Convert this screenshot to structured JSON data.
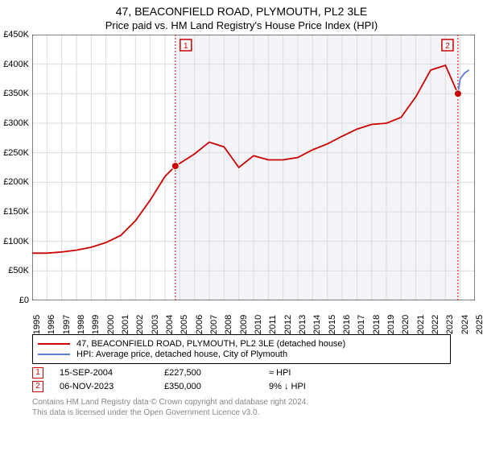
{
  "title": "47, BEACONFIELD ROAD, PLYMOUTH, PL2 3LE",
  "subtitle": "Price paid vs. HM Land Registry's House Price Index (HPI)",
  "chart": {
    "type": "line",
    "background_color": "#ffffff",
    "shaded_color": "#f2f4f8",
    "border_color": "#000000",
    "grid_color": "#dcdcdc",
    "ylim": [
      0,
      450000
    ],
    "ytick_step": 50000,
    "y_ticks": [
      "£0",
      "£50K",
      "£100K",
      "£150K",
      "£200K",
      "£250K",
      "£300K",
      "£350K",
      "£400K",
      "£450K"
    ],
    "xlim": [
      1995,
      2025
    ],
    "x_ticks": [
      1995,
      1996,
      1997,
      1998,
      1999,
      2000,
      2001,
      2002,
      2003,
      2004,
      2005,
      2006,
      2007,
      2008,
      2009,
      2010,
      2011,
      2012,
      2013,
      2014,
      2015,
      2016,
      2017,
      2018,
      2019,
      2020,
      2021,
      2022,
      2023,
      2024,
      2025
    ],
    "series": [
      {
        "name": "47, BEACONFIELD ROAD, PLYMOUTH, PL2 3LE (detached house)",
        "color": "#cc0000",
        "line_width": 1.8,
        "points": [
          [
            1995,
            80000
          ],
          [
            1996,
            80000
          ],
          [
            1997,
            82000
          ],
          [
            1998,
            85000
          ],
          [
            1999,
            90000
          ],
          [
            2000,
            98000
          ],
          [
            2001,
            110000
          ],
          [
            2002,
            135000
          ],
          [
            2003,
            170000
          ],
          [
            2004,
            210000
          ],
          [
            2004.7,
            227500
          ],
          [
            2005,
            232000
          ],
          [
            2006,
            248000
          ],
          [
            2007,
            268000
          ],
          [
            2008,
            260000
          ],
          [
            2009,
            225000
          ],
          [
            2010,
            245000
          ],
          [
            2011,
            238000
          ],
          [
            2012,
            238000
          ],
          [
            2013,
            242000
          ],
          [
            2014,
            255000
          ],
          [
            2015,
            265000
          ],
          [
            2016,
            278000
          ],
          [
            2017,
            290000
          ],
          [
            2018,
            298000
          ],
          [
            2019,
            300000
          ],
          [
            2020,
            310000
          ],
          [
            2021,
            345000
          ],
          [
            2022,
            390000
          ],
          [
            2023,
            398000
          ],
          [
            2023.85,
            350000
          ]
        ]
      },
      {
        "name": "HPI: Average price, detached house, City of Plymouth",
        "color": "#5b7bd5",
        "line_width": 1.4,
        "points": [
          [
            2023.85,
            352000
          ],
          [
            2024.0,
            375000
          ],
          [
            2024.3,
            385000
          ],
          [
            2024.6,
            390000
          ]
        ]
      }
    ],
    "transactions": [
      {
        "label": "1",
        "year": 2004.7,
        "price": 227500,
        "color": "#cc0000"
      },
      {
        "label": "2",
        "year": 2023.85,
        "price": 350000,
        "color": "#cc0000"
      }
    ]
  },
  "legend": {
    "rows": [
      {
        "color": "#cc0000",
        "label": "47, BEACONFIELD ROAD, PLYMOUTH, PL2 3LE (detached house)"
      },
      {
        "color": "#5b7bd5",
        "label": "HPI: Average price, detached house, City of Plymouth"
      }
    ]
  },
  "table": {
    "rows": [
      {
        "marker": "1",
        "marker_color": "#cc0000",
        "date": "15-SEP-2004",
        "price": "£227,500",
        "change": "≈ HPI"
      },
      {
        "marker": "2",
        "marker_color": "#cc0000",
        "date": "06-NOV-2023",
        "price": "£350,000",
        "change": "9% ↓ HPI"
      }
    ]
  },
  "footer_line1": "Contains HM Land Registry data © Crown copyright and database right 2024.",
  "footer_line2": "This data is licensed under the Open Government Licence v3.0."
}
